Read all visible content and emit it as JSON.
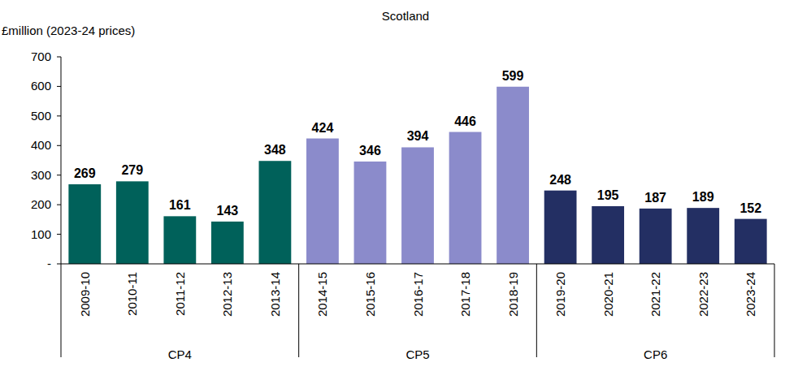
{
  "chart_data": {
    "type": "bar",
    "title": "Scotland",
    "y_label": "£million (2023-24 prices)",
    "categories": [
      "2009-10",
      "2010-11",
      "2011-12",
      "2012-13",
      "2013-14",
      "2014-15",
      "2015-16",
      "2016-17",
      "2017-18",
      "2018-19",
      "2019-20",
      "2020-21",
      "2021-22",
      "2022-23",
      "2023-24"
    ],
    "values": [
      269,
      279,
      161,
      143,
      348,
      424,
      346,
      394,
      446,
      599,
      248,
      195,
      187,
      189,
      152
    ],
    "colors": [
      "#00615a",
      "#00615a",
      "#00615a",
      "#00615a",
      "#00615a",
      "#8b8bcb",
      "#8b8bcb",
      "#8b8bcb",
      "#8b8bcb",
      "#8b8bcb",
      "#232f63",
      "#232f63",
      "#232f63",
      "#232f63",
      "#232f63"
    ],
    "groups": [
      {
        "name": "CP4",
        "count": 5
      },
      {
        "name": "CP5",
        "count": 5
      },
      {
        "name": "CP6",
        "count": 5
      }
    ],
    "ylim": [
      0,
      700
    ],
    "yticks": [
      {
        "value": 0,
        "label": "-"
      },
      100,
      200,
      300,
      400,
      500,
      600,
      700
    ],
    "grid": false,
    "data_labels": true
  }
}
